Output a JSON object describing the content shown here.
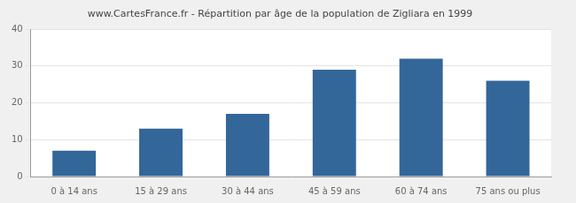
{
  "chart_data": {
    "type": "bar",
    "title": "www.CartesFrance.fr - Répartition par âge de la population de Zigliara en 1999",
    "categories": [
      "0 à 14 ans",
      "15 à 29 ans",
      "30 à 44 ans",
      "45 à 59 ans",
      "60 à 74 ans",
      "75 ans ou plus"
    ],
    "values": [
      7,
      13,
      17,
      29,
      32,
      26
    ],
    "color": "#336699",
    "ylim": [
      0,
      40
    ],
    "yticks": [
      0,
      10,
      20,
      30,
      40
    ],
    "grid": true
  }
}
